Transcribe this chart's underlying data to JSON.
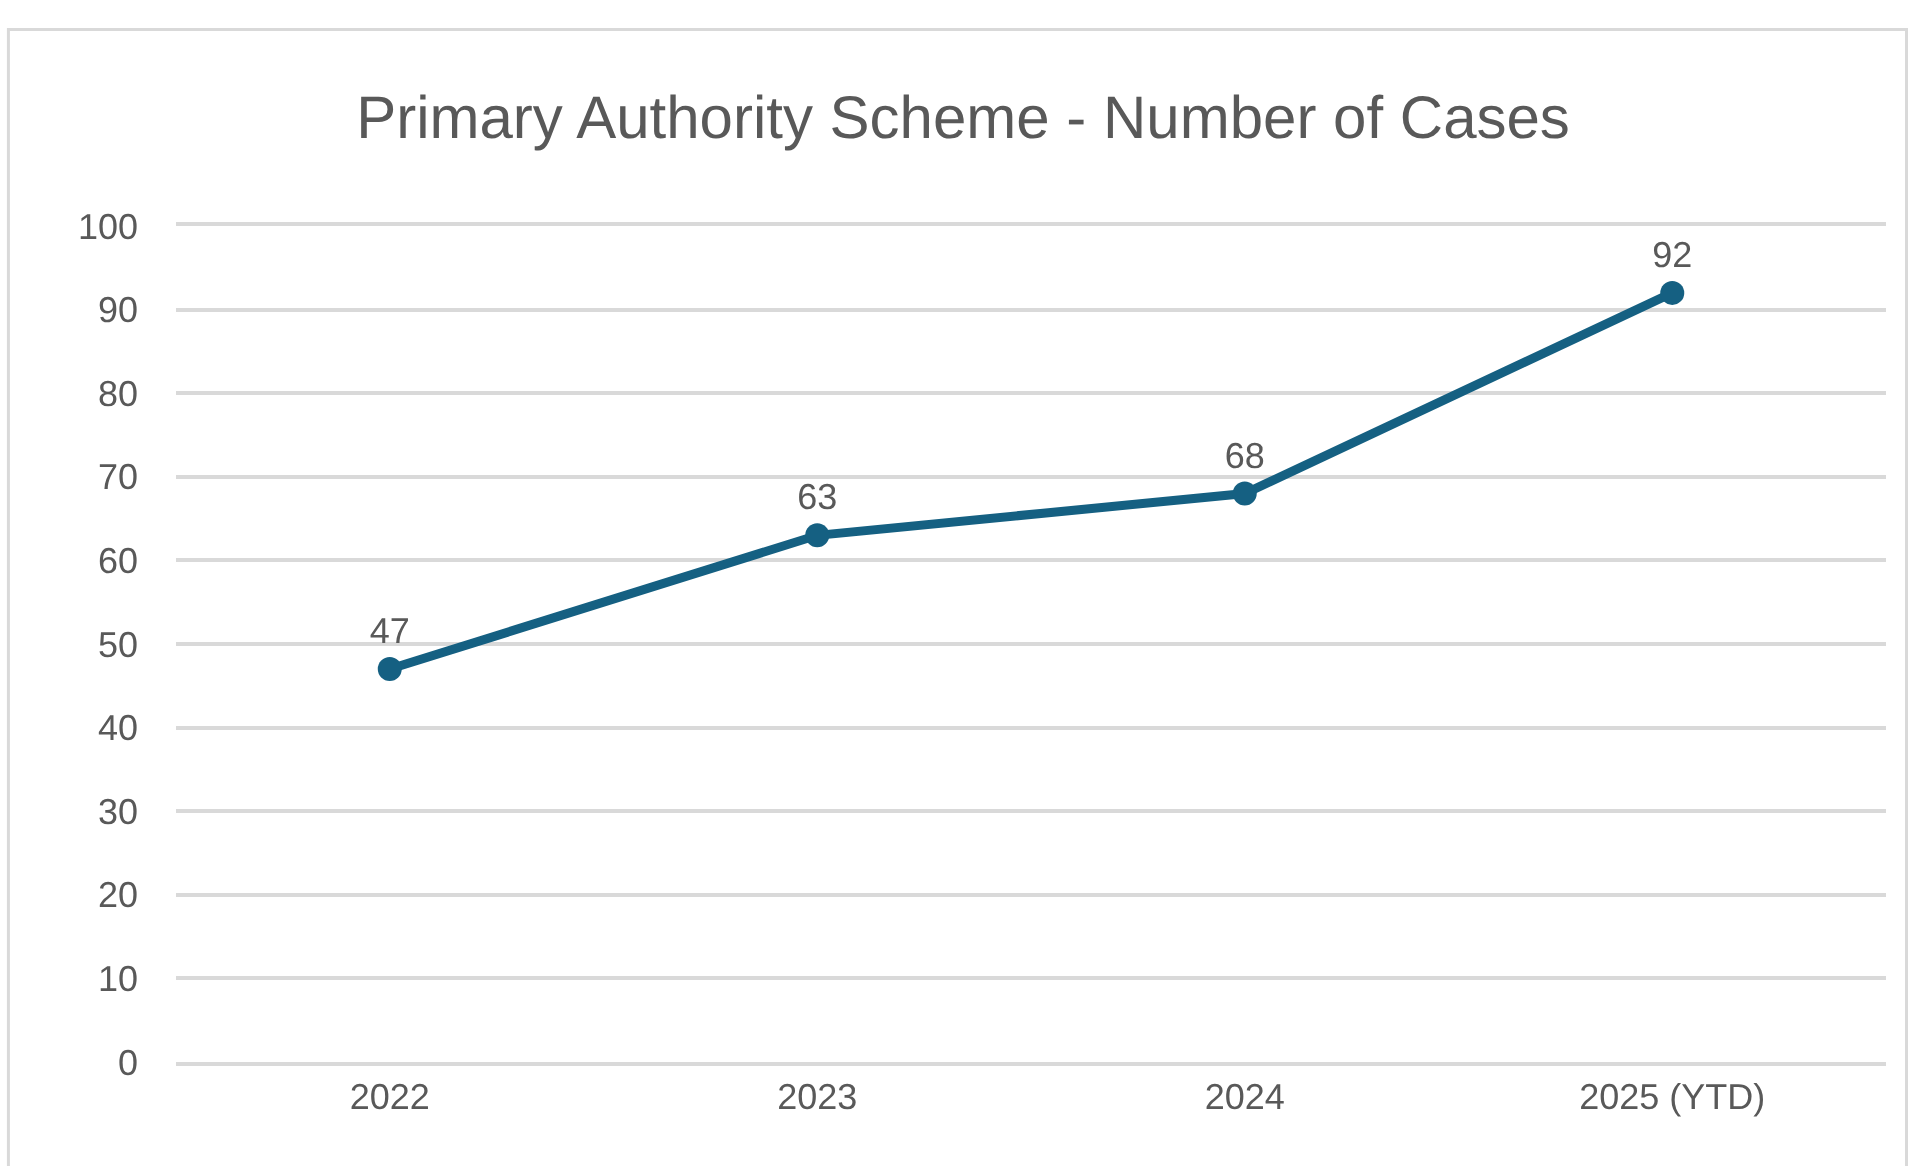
{
  "chart_data": {
    "type": "line",
    "title": "Primary Authority Scheme - Number of Cases",
    "categories": [
      "2022",
      "2023",
      "2024",
      "2025 (YTD)"
    ],
    "series": [
      {
        "color": "#156082",
        "values": [
          47,
          63,
          68,
          92
        ]
      }
    ],
    "ylim": [
      0,
      100
    ],
    "yticks": [
      0,
      10,
      20,
      30,
      40,
      50,
      60,
      70,
      80,
      90,
      100
    ],
    "grid": "y",
    "marker": "circle",
    "line_style": "solid",
    "data_labels": true
  }
}
